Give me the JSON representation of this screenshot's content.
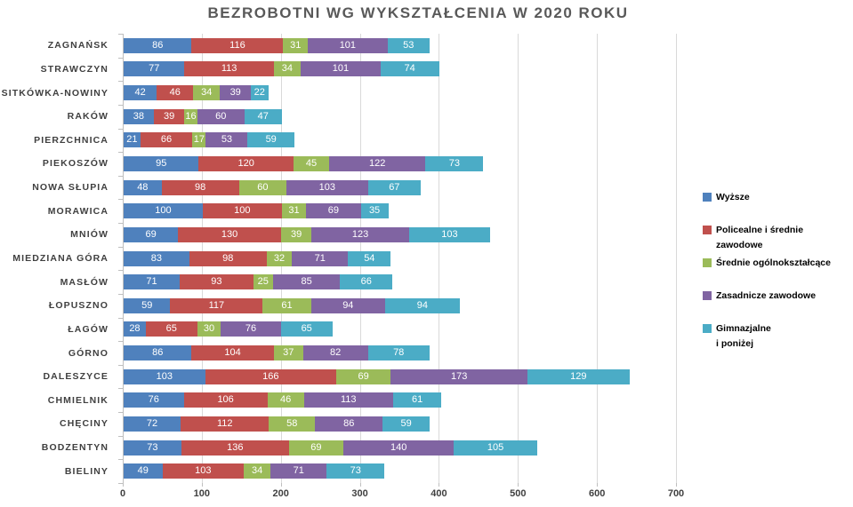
{
  "chart_data": {
    "type": "bar",
    "orientation": "horizontal",
    "stacked": true,
    "title": "BEZROBOTNI WG WYKSZTAŁCENIA W 2020 ROKU",
    "xlabel": "",
    "ylabel": "",
    "xlim": [
      0,
      700
    ],
    "x_ticks": [
      0,
      100,
      200,
      300,
      400,
      500,
      600,
      700
    ],
    "grid": true,
    "legend_position": "right",
    "categories": [
      "ZAGNAŃSK",
      "STRAWCZYN",
      "SITKÓWKA-NOWINY",
      "RAKÓW",
      "PIERZCHNICA",
      "PIEKOSZÓW",
      "NOWA SŁUPIA",
      "MORAWICA",
      "MNIÓW",
      "MIEDZIANA GÓRA",
      "MASŁÓW",
      "ŁOPUSZNO",
      "ŁAGÓW",
      "GÓRNO",
      "DALESZYCE",
      "CHMIELNIK",
      "CHĘCINY",
      "BODZENTYN",
      "BIELINY"
    ],
    "series": [
      {
        "name": "Wyższe",
        "legend_label": "Wyższe",
        "color": "#4F81BD",
        "values": [
          86,
          77,
          42,
          38,
          21,
          95,
          48,
          100,
          69,
          83,
          71,
          59,
          28,
          86,
          103,
          76,
          72,
          73,
          49
        ]
      },
      {
        "name": "Policealne i średnie zawodowe",
        "legend_label": "Policealne i średnie zawodowe",
        "color": "#C0504D",
        "values": [
          116,
          113,
          46,
          39,
          66,
          120,
          98,
          100,
          130,
          98,
          93,
          117,
          65,
          104,
          166,
          106,
          112,
          136,
          103
        ]
      },
      {
        "name": "Średnie ogólnokształcące",
        "legend_label": "Średnie ogólnokształcące",
        "color": "#9BBB59",
        "values": [
          31,
          34,
          34,
          16,
          17,
          45,
          60,
          31,
          39,
          32,
          25,
          61,
          30,
          37,
          69,
          46,
          58,
          69,
          34
        ]
      },
      {
        "name": "Zasadnicze zawodowe",
        "legend_label": "Zasadnicze zawodowe",
        "color": "#8064A2",
        "values": [
          101,
          101,
          39,
          60,
          53,
          122,
          103,
          69,
          123,
          71,
          85,
          94,
          76,
          82,
          173,
          113,
          86,
          140,
          71
        ]
      },
      {
        "name": "Gimnazjalne i poniżej",
        "legend_label": "Gimnazjalne\ni poniżej",
        "color": "#4BACC6",
        "values": [
          53,
          74,
          22,
          47,
          59,
          73,
          67,
          35,
          103,
          54,
          66,
          94,
          65,
          78,
          129,
          61,
          59,
          105,
          73
        ]
      }
    ],
    "colors": {
      "title": "#595959",
      "grid": "#D9D9D9",
      "axis": "#BFBFBF",
      "category_label": "#404040",
      "tick_label": "#404040",
      "value_label": "#FFFFFF",
      "background": "#FFFFFF"
    }
  }
}
